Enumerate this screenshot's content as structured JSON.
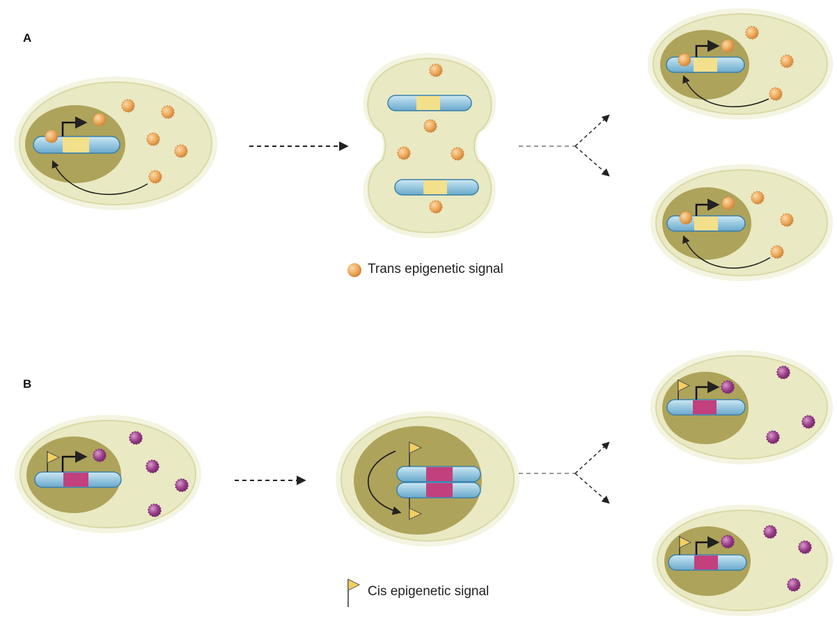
{
  "panels": {
    "a": {
      "label": "A",
      "legend": "Trans epigenetic signal"
    },
    "b": {
      "label": "B",
      "legend": "Cis epigenetic signal"
    }
  },
  "colors": {
    "cytoplasm": "#e9e9c3",
    "cell_rim": "#f4f4e2",
    "nucleus": "#aea35a",
    "chromosome": "#9dcbe2",
    "chromosome_outline": "#3b7fa8",
    "trans_region": "#f2e08a",
    "cis_region": "#c2407e",
    "trans_signal": "#eda85a",
    "cis_signal": "#9c3f8c",
    "flag": "#f3cf5e"
  },
  "icons": {
    "trans_signal": "orange-protein-sphere-icon",
    "cis_signal": "flag-marker-icon"
  }
}
